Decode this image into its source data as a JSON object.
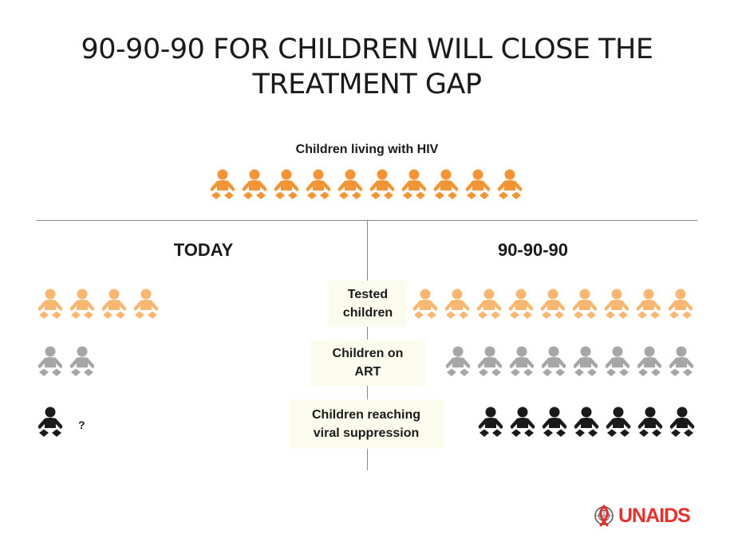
{
  "title_line1": "90-90-90 FOR CHILDREN WILL CLOSE THE",
  "title_line2": "TREATMENT GAP",
  "top_label": "Children living with HIV",
  "left_heading": "TODAY",
  "right_heading": "90-90-90",
  "rows": [
    {
      "label_line1": "Tested",
      "label_line2": "children",
      "today_count": 4,
      "target_count": 9,
      "color": "#f9b772"
    },
    {
      "label_line1": "Children on",
      "label_line2": "ART",
      "today_count": 2,
      "target_count": 8,
      "color": "#a6a6a6"
    },
    {
      "label_line1": "Children reaching",
      "label_line2": "viral suppression",
      "today_count": 1,
      "target_count": 7,
      "color": "#1a1a1a"
    }
  ],
  "total_children": 10,
  "total_color": "#f39437",
  "unknown_mark": "?",
  "logo_text": "UNAIDS",
  "brand_color": "#e4322b"
}
